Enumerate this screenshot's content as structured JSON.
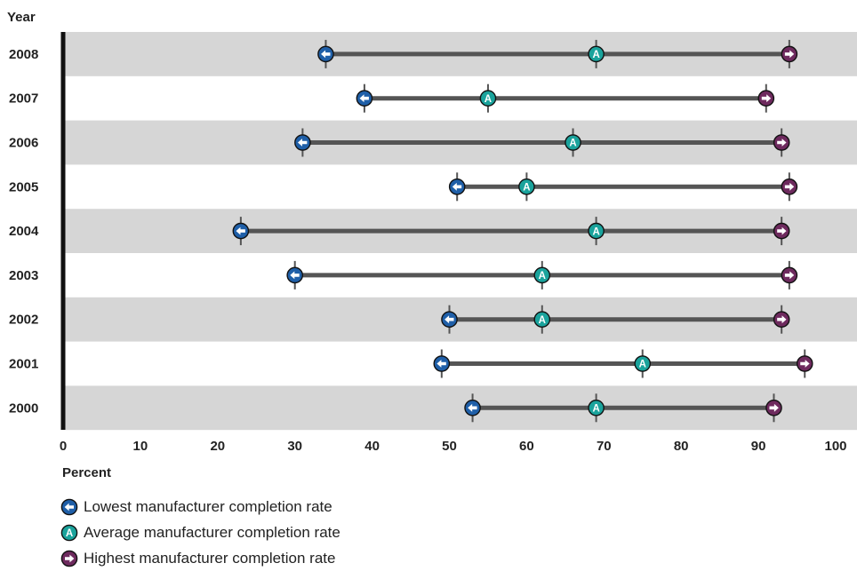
{
  "chart_data": {
    "type": "range",
    "ylabel": "Year",
    "xlabel": "Percent",
    "xlim": [
      0,
      100
    ],
    "x_ticks": [
      "0",
      "10",
      "20",
      "30",
      "40",
      "50",
      "60",
      "70",
      "80",
      "90",
      "100"
    ],
    "categories": [
      "2008",
      "2007",
      "2006",
      "2005",
      "2004",
      "2003",
      "2002",
      "2001",
      "2000"
    ],
    "series": [
      {
        "name": "Lowest manufacturer completion rate",
        "marker": "left-arrow",
        "color": "#1f5fa8",
        "values": [
          34,
          39,
          31,
          51,
          23,
          30,
          50,
          49,
          53
        ]
      },
      {
        "name": "Average manufacturer completion rate",
        "marker": "A",
        "color": "#1aa39c",
        "values": [
          69,
          55,
          66,
          60,
          69,
          62,
          62,
          75,
          69
        ]
      },
      {
        "name": "Highest manufacturer completion rate",
        "marker": "right-arrow",
        "color": "#6e2a5e",
        "values": [
          94,
          91,
          93,
          94,
          93,
          94,
          93,
          96,
          92
        ]
      }
    ],
    "grid": false,
    "legend_position": "bottom-left",
    "band_color": "#d6d6d6",
    "line_color": "#555555"
  }
}
